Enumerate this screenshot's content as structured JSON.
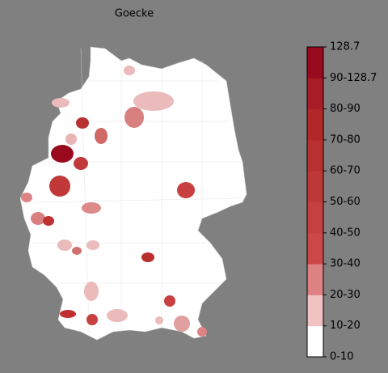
{
  "title": "Goecke",
  "colorbar": {
    "labels": [
      "0-10",
      "10-20",
      "20-30",
      "30-40",
      "40-50",
      "50-60",
      "60-70",
      "70-80",
      "80-90",
      "90-128.7",
      "128.7"
    ],
    "colors": [
      "#ffffff",
      "#f0c2c2",
      "#dc8282",
      "#ca4848",
      "#c54040",
      "#bf3838",
      "#b93030",
      "#b22828",
      "#a81c26",
      "#9a0a1e"
    ]
  }
}
